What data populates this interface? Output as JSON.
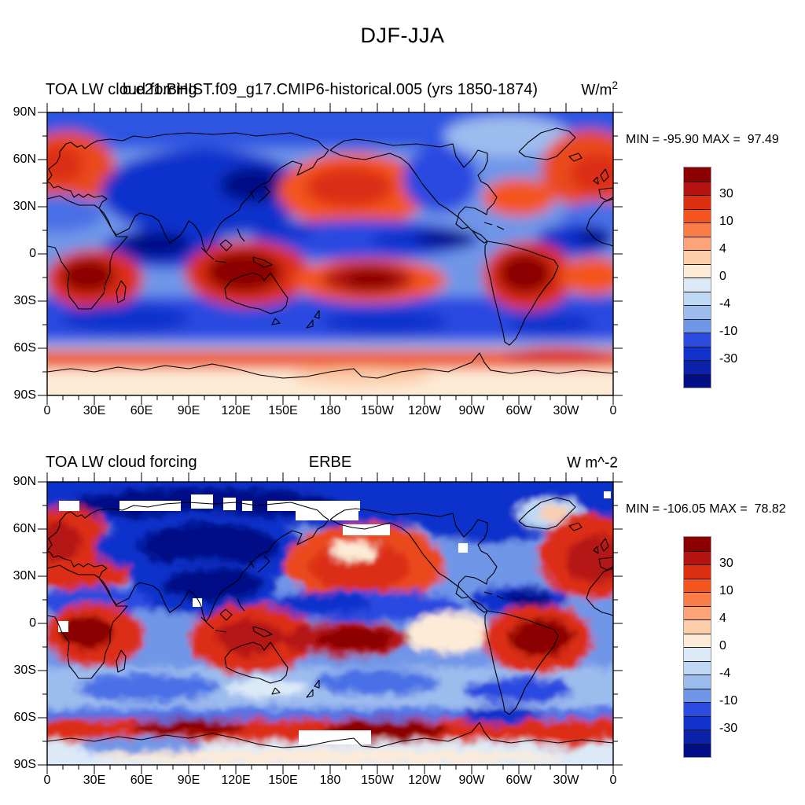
{
  "page_title": "DJF-JJA",
  "axes": {
    "lat_labels": [
      "90N",
      "60N",
      "30N",
      "0",
      "30S",
      "60S",
      "90S"
    ],
    "lon_labels": [
      "0",
      "30E",
      "60E",
      "90E",
      "120E",
      "150E",
      "180",
      "150W",
      "120W",
      "90W",
      "60W",
      "30W",
      "0"
    ]
  },
  "colorbar": {
    "colors": [
      "#8B0000",
      "#B51212",
      "#DC2F12",
      "#F4551E",
      "#FA7D47",
      "#FCA477",
      "#FCCDA9",
      "#FDEBD7",
      "#DCEAF8",
      "#BFD9F4",
      "#9DBCEE",
      "#7096E8",
      "#2A4AE0",
      "#1133CC",
      "#0C22AA",
      "#020E86"
    ],
    "levels": [
      40,
      30,
      20,
      10,
      6,
      4,
      2,
      0,
      -2,
      -4,
      -6,
      -10,
      -20,
      -30,
      -40
    ],
    "labeled": [
      30,
      10,
      4,
      0,
      -4,
      -10,
      -30
    ]
  },
  "panels": [
    {
      "left_title": "TOA LW cloud forcing",
      "center_title": "b.e21.BHIST.f09_g17.CMIP6-historical.005 (yrs 1850-1874)",
      "units_base": "W/m",
      "units_sup": "2",
      "minmax": "MIN = -95.90 MAX =  97.49",
      "field": {
        "base": "#7096E8",
        "noise": false,
        "bands": [
          [
            -30,
            -30,
            780,
            76,
            "#2F55E2"
          ],
          [
            -30,
            234,
            780,
            60,
            "#2A4AE0"
          ],
          [
            -30,
            292,
            780,
            12,
            "#9DBCEE"
          ],
          [
            -30,
            302,
            780,
            26,
            "#EE5A26"
          ],
          [
            -30,
            326,
            780,
            64,
            "#FDEBD7"
          ]
        ],
        "blobs": [
          [
            25,
            72,
            62,
            48,
            "#EA4A1E"
          ],
          [
            16,
            66,
            30,
            24,
            "#DC2F12"
          ],
          [
            585,
            30,
            80,
            26,
            "#9DBCEE"
          ],
          [
            200,
            102,
            132,
            56,
            "#1133CC"
          ],
          [
            262,
            92,
            42,
            22,
            "#020E86"
          ],
          [
            170,
            122,
            62,
            30,
            "#1133CC"
          ],
          [
            390,
            100,
            96,
            48,
            "#F4551E"
          ],
          [
            385,
            95,
            56,
            26,
            "#DC2F12"
          ],
          [
            500,
            85,
            48,
            42,
            "#2A4AE0"
          ],
          [
            690,
            72,
            62,
            50,
            "#EA4A1E"
          ],
          [
            700,
            78,
            34,
            26,
            "#DC2F12"
          ],
          [
            600,
            108,
            46,
            24,
            "#F4551E"
          ],
          [
            12,
            128,
            60,
            24,
            "#4A6FE6"
          ],
          [
            700,
            134,
            45,
            22,
            "#4A6FE6"
          ],
          [
            150,
            172,
            78,
            26,
            "#1133CC"
          ],
          [
            138,
            168,
            45,
            16,
            "#020E86"
          ],
          [
            400,
            162,
            140,
            26,
            "#2A4AE0"
          ],
          [
            480,
            162,
            70,
            15,
            "#1133CC"
          ],
          [
            505,
            160,
            38,
            10,
            "#020E86"
          ],
          [
            300,
            150,
            40,
            12,
            "#1133CC"
          ],
          [
            672,
            162,
            50,
            20,
            "#1133CC"
          ],
          [
            695,
            158,
            22,
            9,
            "#020E86"
          ],
          [
            60,
            212,
            62,
            38,
            "#DC2F12"
          ],
          [
            52,
            208,
            34,
            22,
            "#8B0000"
          ],
          [
            255,
            205,
            80,
            42,
            "#DC2F12"
          ],
          [
            250,
            203,
            48,
            26,
            "#8B0000"
          ],
          [
            410,
            214,
            98,
            28,
            "#F4551E"
          ],
          [
            408,
            212,
            58,
            20,
            "#B51212"
          ],
          [
            412,
            212,
            34,
            13,
            "#8B0000"
          ],
          [
            612,
            208,
            58,
            44,
            "#DC2F12"
          ],
          [
            608,
            205,
            34,
            26,
            "#8B0000"
          ],
          [
            695,
            208,
            42,
            24,
            "#F4551E"
          ],
          [
            100,
            262,
            82,
            18,
            "#1133CC"
          ],
          [
            430,
            266,
            80,
            16,
            "#1133CC"
          ],
          [
            640,
            268,
            55,
            14,
            "#1133CC"
          ],
          [
            650,
            310,
            70,
            12,
            "#DC2F12"
          ],
          [
            400,
            336,
            90,
            12,
            "#FCCDA9"
          ]
        ],
        "white_rects": []
      }
    },
    {
      "left_title": "TOA LW cloud forcing",
      "center_title": "ERBE",
      "units_base": "W m^-2",
      "units_sup": "",
      "minmax": "MIN = -106.05 MAX =  78.82",
      "field": {
        "base": "#7096E8",
        "noise": true,
        "bands": [
          [
            -30,
            -30,
            780,
            88,
            "#1133CC"
          ],
          [
            -30,
            236,
            780,
            54,
            "#9DBCEE"
          ],
          [
            -30,
            288,
            780,
            16,
            "#4A6FE6"
          ],
          [
            -30,
            302,
            780,
            30,
            "#DC2F12"
          ],
          [
            -30,
            330,
            780,
            60,
            "#DCEAF8"
          ]
        ],
        "blobs": [
          [
            200,
            28,
            170,
            20,
            "#020E86"
          ],
          [
            560,
            48,
            90,
            30,
            "#1133CC"
          ],
          [
            25,
            80,
            55,
            50,
            "#DC2F12"
          ],
          [
            14,
            76,
            28,
            26,
            "#B51212"
          ],
          [
            195,
            88,
            135,
            50,
            "#1133CC"
          ],
          [
            205,
            82,
            88,
            30,
            "#020E86"
          ],
          [
            640,
            40,
            42,
            20,
            "#BFD9F4"
          ],
          [
            645,
            38,
            18,
            9,
            "#FCCDA9"
          ],
          [
            405,
            105,
            102,
            52,
            "#EA4A1E"
          ],
          [
            398,
            108,
            64,
            32,
            "#DC2F12"
          ],
          [
            390,
            88,
            30,
            13,
            "#FDEBD7"
          ],
          [
            690,
            95,
            65,
            55,
            "#DC2F12"
          ],
          [
            697,
            98,
            36,
            30,
            "#B51212"
          ],
          [
            40,
            118,
            66,
            20,
            "#DC2F12"
          ],
          [
            200,
            135,
            92,
            36,
            "#1133CC"
          ],
          [
            210,
            130,
            62,
            22,
            "#020E86"
          ],
          [
            60,
            152,
            70,
            18,
            "#2A4AE0"
          ],
          [
            400,
            158,
            130,
            20,
            "#2A4AE0"
          ],
          [
            350,
            154,
            60,
            14,
            "#1133CC"
          ],
          [
            600,
            150,
            62,
            18,
            "#1133CC"
          ],
          [
            610,
            148,
            30,
            10,
            "#020E86"
          ],
          [
            60,
            194,
            64,
            40,
            "#DC2F12"
          ],
          [
            50,
            192,
            34,
            22,
            "#8B0000"
          ],
          [
            260,
            200,
            80,
            44,
            "#DC2F12"
          ],
          [
            258,
            198,
            42,
            22,
            "#B51212"
          ],
          [
            380,
            200,
            82,
            22,
            "#B51212"
          ],
          [
            390,
            200,
            46,
            13,
            "#8B0000"
          ],
          [
            510,
            192,
            52,
            26,
            "#FDEBD7"
          ],
          [
            625,
            200,
            70,
            44,
            "#DC2F12"
          ],
          [
            628,
            198,
            40,
            24,
            "#8B0000"
          ],
          [
            130,
            262,
            90,
            18,
            "#4A6FE6"
          ],
          [
            420,
            255,
            80,
            16,
            "#4A6FE6"
          ],
          [
            600,
            265,
            70,
            16,
            "#2A4AE0"
          ],
          [
            280,
            262,
            50,
            12,
            "#DCEAF8"
          ],
          [
            575,
            296,
            50,
            12,
            "#1133CC"
          ],
          [
            180,
            312,
            70,
            10,
            "#8B0000"
          ],
          [
            430,
            315,
            80,
            12,
            "#8B0000"
          ],
          [
            120,
            336,
            80,
            12,
            "#7096E8"
          ],
          [
            360,
            350,
            300,
            9,
            "#FDEBD7"
          ],
          [
            660,
            324,
            40,
            14,
            "#DC2F12"
          ]
        ],
        "white_rects": [
          [
            15,
            24,
            26,
            13
          ],
          [
            92,
            24,
            78,
            13
          ],
          [
            183,
            16,
            28,
            18
          ],
          [
            224,
            20,
            16,
            16
          ],
          [
            248,
            24,
            13,
            13
          ],
          [
            280,
            24,
            118,
            13
          ],
          [
            316,
            37,
            80,
            12
          ],
          [
            376,
            54,
            60,
            14
          ],
          [
            523,
            78,
            12,
            12
          ],
          [
            185,
            148,
            12,
            11
          ],
          [
            14,
            177,
            13,
            14
          ],
          [
            320,
            316,
            92,
            18
          ],
          [
            708,
            12,
            9,
            9
          ]
        ]
      }
    }
  ],
  "chart_data": [
    {
      "type": "heatmap",
      "subtype": "filled-contour global map, equirectangular, lon 0E eastward to 0 (centered 180)",
      "figure_title": "DJF-JJA",
      "variable": "TOA LW cloud forcing",
      "panel_title": "b.e21.BHIST.f09_g17.CMIP6-historical.005 (yrs 1850-1874)",
      "units": "W/m2",
      "min": -95.9,
      "max": 97.49,
      "contour_levels": [
        -40,
        -30,
        -20,
        -10,
        -6,
        -4,
        -2,
        0,
        2,
        4,
        6,
        10,
        20,
        30,
        40
      ],
      "labeled_levels": [
        -30,
        -10,
        -4,
        0,
        4,
        10,
        30
      ],
      "lat_ticks": [
        "90N",
        "60N",
        "30N",
        "0",
        "30S",
        "60S",
        "90S"
      ],
      "lon_ticks": [
        "0",
        "30E",
        "60E",
        "90E",
        "120E",
        "150E",
        "180",
        "150W",
        "120W",
        "90W",
        "60W",
        "30W",
        "0"
      ],
      "legend_position": "right vertical colorbar",
      "grid": false
    },
    {
      "type": "heatmap",
      "subtype": "filled-contour global map, equirectangular, lon 0E eastward to 0 (centered 180)",
      "figure_title": "DJF-JJA",
      "variable": "TOA LW cloud forcing",
      "panel_title": "ERBE",
      "units": "W m^-2",
      "min": -106.05,
      "max": 78.82,
      "contour_levels": [
        -40,
        -30,
        -20,
        -10,
        -6,
        -4,
        -2,
        0,
        2,
        4,
        6,
        10,
        20,
        30,
        40
      ],
      "labeled_levels": [
        -30,
        -10,
        -4,
        0,
        4,
        10,
        30
      ],
      "lat_ticks": [
        "90N",
        "60N",
        "30N",
        "0",
        "30S",
        "60S",
        "90S"
      ],
      "lon_ticks": [
        "0",
        "30E",
        "60E",
        "90E",
        "120E",
        "150E",
        "180",
        "150W",
        "120W",
        "90W",
        "60W",
        "30W",
        "0"
      ],
      "legend_position": "right vertical colorbar",
      "grid": false,
      "missing_data": "white patches over Arctic, parts of South Asia and Ross Sea sector"
    }
  ]
}
